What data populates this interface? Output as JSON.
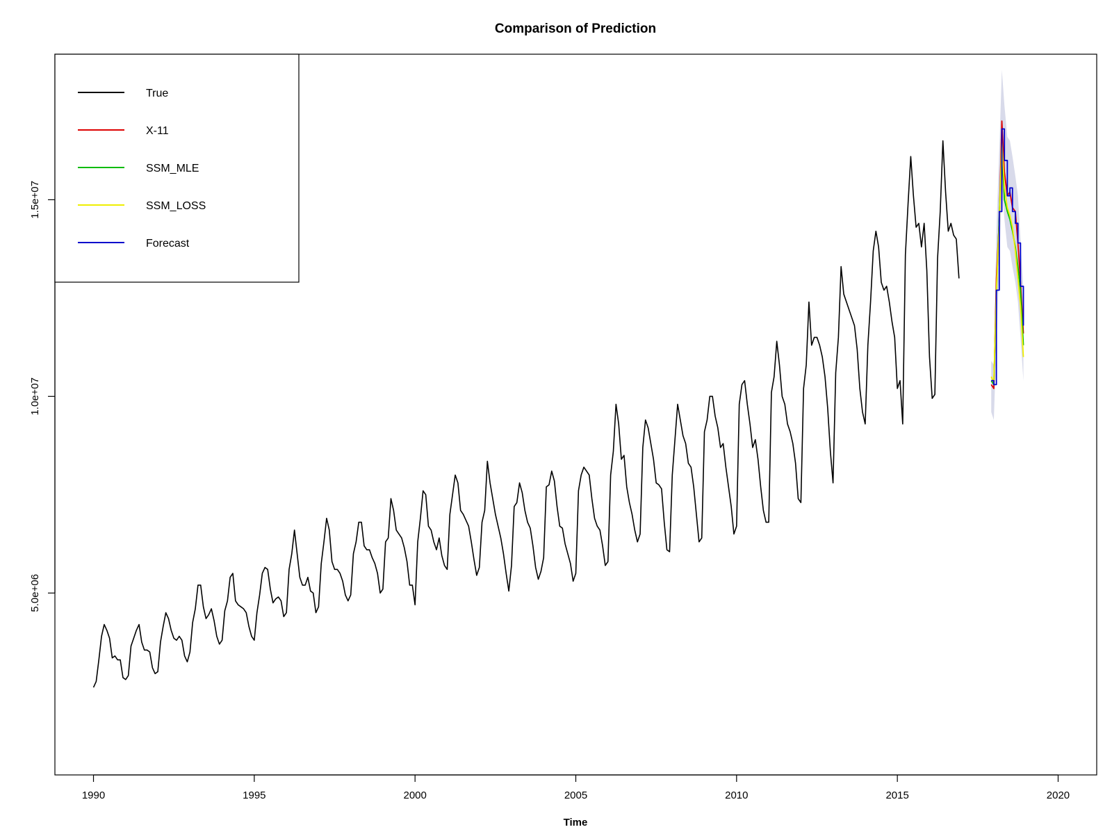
{
  "chart_data": {
    "type": "line",
    "title": "Comparison of Prediction",
    "xlabel": "Time",
    "ylabel": "",
    "xlim": [
      1988.8,
      2021.2
    ],
    "ylim": [
      375000,
      18700000
    ],
    "x_ticks": [
      1990,
      1995,
      2000,
      2005,
      2010,
      2015,
      2020
    ],
    "y_ticks": [
      5000000,
      10000000,
      15000000
    ],
    "y_tick_labels": [
      "5.0e+06",
      "1.0e+07",
      "1.5e+07"
    ],
    "legend": {
      "position": "top-left",
      "entries": [
        {
          "label": "True",
          "color": "#000000"
        },
        {
          "label": "X-11",
          "color": "#dd0000"
        },
        {
          "label": "SSM_MLE",
          "color": "#00bb00"
        },
        {
          "label": "SSM_LOSS",
          "color": "#eeee00"
        },
        {
          "label": "Forecast",
          "color": "#0000cc"
        }
      ]
    },
    "true_series": {
      "name": "True",
      "color": "#000000",
      "start_year": 1990,
      "frequency": 12,
      "values": [
        2600000,
        2750000,
        3300000,
        3900000,
        4200000,
        4050000,
        3850000,
        3350000,
        3400000,
        3300000,
        3300000,
        2850000,
        2800000,
        2900000,
        3650000,
        3850000,
        4050000,
        4200000,
        3750000,
        3550000,
        3550000,
        3500000,
        3100000,
        2950000,
        3000000,
        3750000,
        4150000,
        4500000,
        4350000,
        4050000,
        3850000,
        3800000,
        3900000,
        3800000,
        3400000,
        3250000,
        3500000,
        4250000,
        4600000,
        5200000,
        5200000,
        4650000,
        4350000,
        4450000,
        4600000,
        4300000,
        3900000,
        3700000,
        3800000,
        4550000,
        4800000,
        5400000,
        5500000,
        4800000,
        4700000,
        4650000,
        4600000,
        4500000,
        4150000,
        3900000,
        3800000,
        4500000,
        4950000,
        5500000,
        5650000,
        5600000,
        5100000,
        4750000,
        4850000,
        4900000,
        4800000,
        4400000,
        4500000,
        5600000,
        6000000,
        6600000,
        6000000,
        5400000,
        5200000,
        5200000,
        5400000,
        5050000,
        5000000,
        4500000,
        4650000,
        5750000,
        6300000,
        6900000,
        6600000,
        5800000,
        5600000,
        5600000,
        5500000,
        5300000,
        4950000,
        4800000,
        4950000,
        6000000,
        6300000,
        6800000,
        6800000,
        6200000,
        6100000,
        6100000,
        5900000,
        5750000,
        5500000,
        5000000,
        5100000,
        6300000,
        6400000,
        7400000,
        7100000,
        6600000,
        6500000,
        6400000,
        6150000,
        5800000,
        5200000,
        5200000,
        4700000,
        6300000,
        6900000,
        7600000,
        7500000,
        6700000,
        6600000,
        6300000,
        6100000,
        6400000,
        5950000,
        5700000,
        5600000,
        7000000,
        7500000,
        8000000,
        7800000,
        7100000,
        7000000,
        6850000,
        6700000,
        6300000,
        5850000,
        5450000,
        5650000,
        6800000,
        7100000,
        8350000,
        7800000,
        7400000,
        7000000,
        6700000,
        6400000,
        6000000,
        5500000,
        5050000,
        5700000,
        7200000,
        7300000,
        7800000,
        7550000,
        7100000,
        6800000,
        6650000,
        6200000,
        5650000,
        5350000,
        5550000,
        5900000,
        7700000,
        7750000,
        8100000,
        7850000,
        7200000,
        6700000,
        6650000,
        6250000,
        6000000,
        5750000,
        5300000,
        5500000,
        7600000,
        8000000,
        8200000,
        8100000,
        8000000,
        7400000,
        6900000,
        6700000,
        6600000,
        6200000,
        5700000,
        5800000,
        8000000,
        8600000,
        9800000,
        9300000,
        8400000,
        8500000,
        7700000,
        7300000,
        7000000,
        6600000,
        6300000,
        6500000,
        8700000,
        9400000,
        9200000,
        8800000,
        8400000,
        7800000,
        7750000,
        7650000,
        6800000,
        6100000,
        6050000,
        8000000,
        8900000,
        9800000,
        9400000,
        9000000,
        8800000,
        8300000,
        8200000,
        7700000,
        7000000,
        6300000,
        6400000,
        9100000,
        9400000,
        10000000,
        10000000,
        9500000,
        9200000,
        8700000,
        8800000,
        8200000,
        7700000,
        7200000,
        6500000,
        6700000,
        9800000,
        10300000,
        10400000,
        9800000,
        9300000,
        8700000,
        8900000,
        8400000,
        7700000,
        7100000,
        6800000,
        6800000,
        10100000,
        10500000,
        11400000,
        10800000,
        10000000,
        9800000,
        9300000,
        9100000,
        8800000,
        8300000,
        7400000,
        7300000,
        10200000,
        10800000,
        12400000,
        11300000,
        11500000,
        11500000,
        11300000,
        11000000,
        10500000,
        9700000,
        8600000,
        7800000,
        10600000,
        11500000,
        13300000,
        12600000,
        12400000,
        12200000,
        12000000,
        11800000,
        11200000,
        10200000,
        9600000,
        9300000,
        11300000,
        12400000,
        13700000,
        14200000,
        13800000,
        12900000,
        12700000,
        12800000,
        12400000,
        11900000,
        11500000,
        10200000,
        10400000,
        9300000,
        13600000,
        14900000,
        16100000,
        15100000,
        14300000,
        14400000,
        13800000,
        14400000,
        13200000,
        11000000,
        9950000,
        10050000,
        13500000,
        14700000,
        16500000,
        15200000,
        14200000,
        14400000,
        14100000,
        14000000,
        13000000
      ]
    },
    "forecast_series": [
      {
        "name": "X-11",
        "color": "#dd0000",
        "x": [
          2017.92,
          2018.0,
          2018.08,
          2018.17,
          2018.25,
          2018.33,
          2018.42,
          2018.5,
          2018.58,
          2018.67,
          2018.75,
          2018.83,
          2018.92
        ],
        "values": [
          10300000,
          10200000,
          13000000,
          14500000,
          17000000,
          15700000,
          15100000,
          15200000,
          14800000,
          14700000,
          13900000,
          12900000,
          11600000
        ]
      },
      {
        "name": "SSM_MLE",
        "color": "#00bb00",
        "x": [
          2017.92,
          2018.0,
          2018.08,
          2018.17,
          2018.25,
          2018.33,
          2018.42,
          2018.5,
          2018.58,
          2018.67,
          2018.75,
          2018.83,
          2018.92
        ],
        "values": [
          10400000,
          10300000,
          12600000,
          14600000,
          16300000,
          15000000,
          14700000,
          14500000,
          14200000,
          13800000,
          13300000,
          12700000,
          11300000
        ]
      },
      {
        "name": "SSM_LOSS",
        "color": "#eeee00",
        "x": [
          2017.92,
          2018.0,
          2018.08,
          2018.17,
          2018.25,
          2018.33,
          2018.42,
          2018.5,
          2018.58,
          2018.67,
          2018.75,
          2018.83,
          2018.92
        ],
        "values": [
          10500000,
          10350000,
          12700000,
          14400000,
          16500000,
          15300000,
          14800000,
          14600000,
          14300000,
          13700000,
          13000000,
          12300000,
          11000000
        ]
      },
      {
        "name": "Forecast",
        "color": "#0000cc",
        "x": [
          2017.92,
          2018.0,
          2018.08,
          2018.17,
          2018.25,
          2018.33,
          2018.42,
          2018.5,
          2018.58,
          2018.67,
          2018.75,
          2018.83,
          2018.92
        ],
        "values": [
          10400000,
          10300000,
          12700000,
          14700000,
          16800000,
          16000000,
          15100000,
          15300000,
          14700000,
          14400000,
          13900000,
          12800000,
          11800000
        ],
        "step": true,
        "band_upper": [
          10900000,
          10800000,
          14200000,
          16300000,
          18300000,
          17400000,
          16600000,
          16500000,
          16100000,
          15600000,
          15100000,
          14000000,
          12700000
        ],
        "band_lower": [
          9600000,
          9400000,
          11300000,
          13300000,
          15300000,
          14500000,
          13800000,
          13700000,
          13300000,
          12900000,
          12400000,
          11500000,
          10400000
        ]
      }
    ]
  }
}
